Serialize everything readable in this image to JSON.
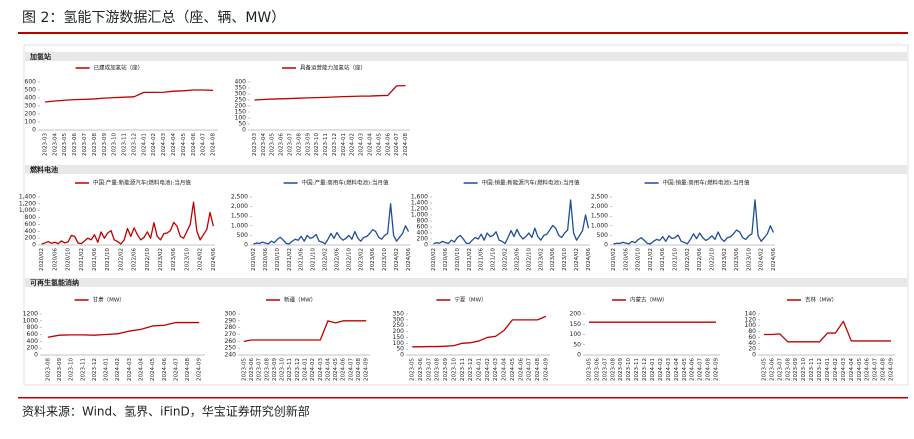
{
  "header": {
    "title": "图 2：氢能下游数据汇总（座、辆、MW）"
  },
  "sections": [
    "加氢站",
    "燃料电池",
    "可再生氢能消纳"
  ],
  "source": "资料来源：Wind、氢界、iFinD，华宝证券研究创新部",
  "chart_data": [
    {
      "type": "line",
      "categories": [
        "2023-03",
        "2023-04",
        "2023-05",
        "2023-06",
        "2023-07",
        "2023-08",
        "2023-09",
        "2023-10",
        "2023-11",
        "2023-12",
        "2024-01",
        "2024-02",
        "2024-03",
        "2024-04",
        "2024-05",
        "2024-06",
        "2024-07",
        "2024-08"
      ],
      "series": [
        {
          "name": "已建成加氢站（座）",
          "color": "#c00000",
          "values": [
            350,
            362,
            372,
            380,
            383,
            388,
            398,
            405,
            410,
            415,
            470,
            470,
            472,
            485,
            490,
            500,
            500,
            495
          ]
        }
      ],
      "ylim": [
        0,
        600
      ],
      "yticks": [
        0,
        100,
        200,
        300,
        400,
        500,
        600
      ]
    },
    {
      "type": "line",
      "categories": [
        "2023-03",
        "2023-04",
        "2023-05",
        "2023-06",
        "2023-07",
        "2023-08",
        "2023-09",
        "2023-10",
        "2023-11",
        "2023-12",
        "2024-01",
        "2024-02",
        "2024-03",
        "2024-04",
        "2024-05",
        "2024-06",
        "2024-07",
        "2024-08"
      ],
      "series": [
        {
          "name": "具备运营能力加氢站（座）",
          "color": "#c00000",
          "values": [
            250,
            254,
            258,
            260,
            262,
            265,
            268,
            270,
            272,
            275,
            278,
            280,
            282,
            283,
            286,
            288,
            368,
            370
          ]
        }
      ],
      "ylim": [
        0,
        400
      ],
      "yticks": [
        0,
        50,
        100,
        150,
        200,
        250,
        300,
        350,
        400
      ]
    },
    {
      "type": "line",
      "categories": [
        "2020/02",
        null,
        null,
        null,
        "2020/06",
        null,
        null,
        null,
        "2020/10",
        null,
        null,
        null,
        "2021/02",
        null,
        null,
        null,
        "2021/06",
        null,
        null,
        null,
        "2021/10",
        null,
        null,
        null,
        "2022/02",
        null,
        null,
        null,
        "2022/06",
        null,
        null,
        null,
        "2022/10",
        null,
        null,
        null,
        "2023/02",
        null,
        null,
        null,
        "2023/06",
        null,
        null,
        null,
        "2023/10",
        null,
        null,
        null,
        "2024/02",
        null,
        null,
        null,
        "2024/06"
      ],
      "series": [
        {
          "name": "中国:产量:新能源汽车(燃料电池):当月值",
          "color": "#c00000",
          "values": [
            30,
            60,
            100,
            50,
            80,
            40,
            120,
            60,
            90,
            280,
            250,
            60,
            40,
            120,
            200,
            150,
            300,
            80,
            380,
            200,
            350,
            420,
            150,
            100,
            30,
            150,
            480,
            250,
            500,
            300,
            150,
            220,
            380,
            200,
            650,
            250,
            150,
            330,
            350,
            420,
            660,
            550,
            250,
            200,
            400,
            600,
            1250,
            400,
            150,
            300,
            450,
            950,
            550
          ]
        }
      ],
      "ylim": [
        0,
        1400
      ],
      "yticks": [
        0,
        200,
        400,
        600,
        800,
        {
          "value": 1000,
          "label": "1,000"
        },
        {
          "value": 1200,
          "label": "1,200"
        },
        {
          "value": 1400,
          "label": "1,400"
        }
      ]
    },
    {
      "type": "line",
      "categories": [
        "2020/02",
        null,
        null,
        null,
        "2020/06",
        null,
        null,
        null,
        "2020/10",
        null,
        null,
        null,
        "2021/02",
        null,
        null,
        null,
        "2021/06",
        null,
        null,
        null,
        "2021/10",
        null,
        null,
        null,
        "2022/02",
        null,
        null,
        null,
        "2022/06",
        null,
        null,
        null,
        "2022/10",
        null,
        null,
        null,
        "2023/02",
        null,
        null,
        null,
        "2023/06",
        null,
        null,
        null,
        "2023/10",
        null,
        null,
        null,
        "2024/02",
        null,
        null,
        null,
        "2024/06"
      ],
      "series": [
        {
          "name": "中国:产量:商用车(燃料电池):当月值",
          "color": "#1f4e9c",
          "values": [
            50,
            100,
            80,
            150,
            100,
            60,
            200,
            120,
            300,
            400,
            250,
            80,
            60,
            200,
            300,
            250,
            450,
            200,
            500,
            350,
            400,
            550,
            200,
            150,
            60,
            300,
            600,
            350,
            650,
            400,
            250,
            350,
            500,
            300,
            700,
            350,
            200,
            400,
            450,
            600,
            800,
            700,
            400,
            300,
            500,
            600,
            2150,
            500,
            200,
            400,
            600,
            1000,
            700
          ]
        }
      ],
      "ylim": [
        0,
        2500
      ],
      "yticks": [
        0,
        500,
        {
          "value": 1000,
          "label": "1,000"
        },
        {
          "value": 1500,
          "label": "1,500"
        },
        {
          "value": 2000,
          "label": "2,000"
        },
        {
          "value": 2500,
          "label": "2,500"
        }
      ]
    },
    {
      "type": "line",
      "categories": [
        "2020/02",
        null,
        null,
        null,
        "2020/06",
        null,
        null,
        null,
        "2020/10",
        null,
        null,
        null,
        "2021/02",
        null,
        null,
        null,
        "2021/06",
        null,
        null,
        null,
        "2021/10",
        null,
        null,
        null,
        "2022/02",
        null,
        null,
        null,
        "2022/06",
        null,
        null,
        null,
        "2022/10",
        null,
        null,
        null,
        "2023/02",
        null,
        null,
        null,
        "2023/06",
        null,
        null,
        null,
        "2023/10",
        null,
        null,
        null,
        "2024/02",
        null,
        null,
        null,
        "2024/06"
      ],
      "series": [
        {
          "name": "中国:销量:新能源汽车(燃料电池):当月值",
          "color": "#1f4e9c",
          "values": [
            40,
            80,
            60,
            120,
            80,
            50,
            160,
            100,
            250,
            320,
            200,
            60,
            50,
            160,
            250,
            200,
            360,
            160,
            400,
            280,
            320,
            440,
            160,
            120,
            50,
            250,
            480,
            280,
            520,
            320,
            200,
            280,
            400,
            250,
            560,
            280,
            160,
            320,
            360,
            500,
            650,
            560,
            320,
            250,
            400,
            500,
            1500,
            400,
            160,
            320,
            480,
            1000,
            560
          ]
        }
      ],
      "ylim": [
        0,
        1600
      ],
      "yticks": [
        0,
        200,
        400,
        600,
        800,
        {
          "value": 1000,
          "label": "1,000"
        },
        {
          "value": 1200,
          "label": "1,200"
        },
        {
          "value": 1400,
          "label": "1,400"
        },
        {
          "value": 1600,
          "label": "1,600"
        }
      ]
    },
    {
      "type": "line",
      "categories": [
        "2020/02",
        null,
        null,
        null,
        "2020/06",
        null,
        null,
        null,
        "2020/10",
        null,
        null,
        null,
        "2021/02",
        null,
        null,
        null,
        "2021/06",
        null,
        null,
        null,
        "2021/10",
        null,
        null,
        null,
        "2022/02",
        null,
        null,
        null,
        "2022/06",
        null,
        null,
        null,
        "2022/10",
        null,
        null,
        null,
        "2023/02",
        null,
        null,
        null,
        "2023/06",
        null,
        null,
        null,
        "2023/10",
        null,
        null,
        null,
        "2024/02",
        null,
        null,
        null,
        "2024/06"
      ],
      "series": [
        {
          "name": "中国:销量:商用车(燃料电池):当月值",
          "color": "#1f4e9c",
          "values": [
            50,
            90,
            80,
            140,
            100,
            60,
            190,
            120,
            280,
            380,
            240,
            80,
            60,
            190,
            290,
            240,
            430,
            190,
            480,
            340,
            380,
            520,
            190,
            140,
            60,
            290,
            580,
            330,
            620,
            380,
            240,
            330,
            480,
            290,
            680,
            330,
            190,
            380,
            430,
            580,
            780,
            680,
            380,
            290,
            480,
            580,
            2350,
            480,
            190,
            380,
            580,
            1000,
            650
          ]
        }
      ],
      "ylim": [
        0,
        2500
      ],
      "yticks": [
        0,
        500,
        {
          "value": 1000,
          "label": "1,000"
        },
        {
          "value": 1500,
          "label": "1,500"
        },
        {
          "value": 2000,
          "label": "2,000"
        },
        {
          "value": 2500,
          "label": "2,500"
        }
      ]
    },
    {
      "type": "line",
      "categories": [
        "2023-08",
        "2023-09",
        "2023-10",
        "2023-11",
        "2023-12",
        "2024-01",
        "2024-02",
        "2024-03",
        "2024-04",
        "2024-05",
        "2024-06",
        "2024-07",
        "2024-08",
        "2024-09"
      ],
      "series": [
        {
          "name": "甘肃（MW）",
          "color": "#c00000",
          "values": [
            520,
            580,
            590,
            590,
            580,
            600,
            620,
            700,
            750,
            850,
            870,
            950,
            950,
            950
          ]
        }
      ],
      "ylim": [
        0,
        1200
      ],
      "yticks": [
        0,
        200,
        400,
        600,
        800,
        1000,
        1200
      ]
    },
    {
      "type": "line",
      "categories": [
        "2023-05",
        "2023-06",
        "2023-07",
        "2023-08",
        "2023-09",
        "2023-10",
        "2023-11",
        "2023-12",
        "2024-01",
        "2024-02",
        "2024-03",
        "2024-04",
        "2024-05",
        "2024-06",
        "2024-07",
        "2024-08",
        "2024-09"
      ],
      "series": [
        {
          "name": "新疆（MW）",
          "color": "#c00000",
          "values": [
            260,
            262,
            262,
            262,
            262,
            262,
            262,
            262,
            262,
            262,
            262,
            290,
            287,
            290,
            290,
            290,
            290
          ]
        }
      ],
      "ylim": [
        240,
        300
      ],
      "yticks": [
        240,
        250,
        260,
        270,
        280,
        290,
        300
      ]
    },
    {
      "type": "line",
      "categories": [
        "2023-05",
        "2023-06",
        "2023-07",
        "2023-08",
        "2023-09",
        "2023-10",
        "2023-11",
        "2023-12",
        "2024-01",
        "2024-02",
        "2024-03",
        "2024-04",
        "2024-05",
        "2024-06",
        "2024-07",
        "2024-08",
        "2024-09"
      ],
      "series": [
        {
          "name": "宁夏（MW）",
          "color": "#c00000",
          "values": [
            70,
            70,
            72,
            72,
            75,
            80,
            100,
            105,
            120,
            150,
            160,
            210,
            300,
            300,
            300,
            300,
            330
          ]
        }
      ],
      "ylim": [
        0,
        350
      ],
      "yticks": [
        0,
        50,
        100,
        150,
        200,
        250,
        300,
        350
      ]
    },
    {
      "type": "line",
      "categories": [
        "2023-05",
        "2023-06",
        "2023-07",
        "2023-08",
        "2023-09",
        "2023-10",
        "2023-11",
        "2023-12",
        "2024-01",
        "2024-02",
        "2024-03",
        "2024-04",
        "2024-05",
        "2024-06",
        "2024-07",
        "2024-08",
        "2024-09"
      ],
      "series": [
        {
          "name": "内蒙古（MW）",
          "color": "#c00000",
          "values": [
            160,
            160,
            160,
            160,
            160,
            160,
            160,
            160,
            160,
            160,
            160,
            160,
            160,
            160,
            160,
            160,
            160
          ]
        }
      ],
      "ylim": [
        0,
        200
      ],
      "yticks": [
        0,
        50,
        100,
        150,
        200
      ]
    },
    {
      "type": "line",
      "categories": [
        "2023-05",
        "2023-06",
        "2023-07",
        "2023-08",
        "2023-09",
        "2023-10",
        "2023-11",
        "2023-12",
        "2024-01",
        "2024-02",
        "2024-03",
        "2024-04",
        "2024-05",
        "2024-06",
        "2024-07",
        "2024-08",
        "2024-09"
      ],
      "series": [
        {
          "name": "吉林（MW）",
          "color": "#c00000",
          "values": [
            70,
            70,
            72,
            45,
            45,
            45,
            45,
            45,
            75,
            75,
            115,
            48,
            48,
            48,
            48,
            48,
            48
          ]
        }
      ],
      "ylim": [
        0,
        140
      ],
      "yticks": [
        0,
        20,
        40,
        60,
        80,
        100,
        120,
        140
      ]
    }
  ]
}
